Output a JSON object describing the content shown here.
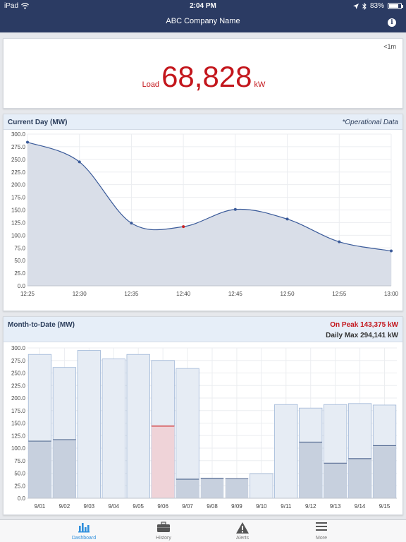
{
  "status_bar": {
    "device": "iPad",
    "time": "2:04 PM",
    "battery": "83%",
    "battery_level": 0.83
  },
  "header": {
    "title": "ABC Company Name",
    "info_icon": "info-icon"
  },
  "load": {
    "refresh": "<1m",
    "label": "Load",
    "value": "68,828",
    "unit": "kW"
  },
  "current_day": {
    "title": "Current Day (MW)",
    "note": "*Operational Data",
    "chart_data": {
      "type": "area",
      "x": [
        "12:25",
        "12:30",
        "12:35",
        "12:40",
        "12:45",
        "12:50",
        "12:55",
        "13:00"
      ],
      "values": [
        284,
        245,
        124,
        117,
        151,
        132,
        87,
        69
      ],
      "highlight_index": 3,
      "ylim": [
        0,
        300
      ],
      "yticks": [
        "0.0",
        "25.0",
        "50.0",
        "75.0",
        "100.0",
        "125.0",
        "150.0",
        "175.0",
        "200.0",
        "225.0",
        "250.0",
        "275.0",
        "300.0"
      ],
      "grid": true,
      "colors": {
        "line": "#3a5a99",
        "fill": "#d9dee8",
        "highlight": "#cc2222"
      }
    }
  },
  "month_to_date": {
    "title": "Month-to-Date (MW)",
    "on_peak": "On Peak 143,375 kW",
    "daily_max": "Daily Max 294,141 kW",
    "chart_data": {
      "type": "bar",
      "categories": [
        "9/01",
        "9/02",
        "9/03",
        "9/04",
        "9/05",
        "9/06",
        "9/07",
        "9/08",
        "9/09",
        "9/10",
        "9/11",
        "9/12",
        "9/13",
        "9/14",
        "9/15"
      ],
      "series": [
        {
          "name": "max",
          "values": [
            287,
            261,
            295,
            278,
            287,
            275,
            259,
            0,
            0,
            49,
            187,
            180,
            187,
            189,
            186
          ]
        },
        {
          "name": "on-peak",
          "values": [
            114,
            117,
            0,
            0,
            0,
            144,
            38,
            40,
            39,
            0,
            0,
            112,
            70,
            79,
            105
          ]
        }
      ],
      "highlight_index": 5,
      "ylim": [
        0,
        300
      ],
      "yticks": [
        "0.0",
        "25.0",
        "50.0",
        "75.0",
        "100.0",
        "125.0",
        "150.0",
        "175.0",
        "200.0",
        "225.0",
        "250.0",
        "275.0",
        "300.0"
      ],
      "grid": true,
      "colors": {
        "max_fill": "#e6ecf4",
        "max_stroke": "#9fb6d6",
        "peak_fill": "#c7d0de",
        "peak_stroke": "#5a6f95",
        "highlight_fill": "#efd3d8",
        "highlight_stroke": "#cc2222"
      }
    }
  },
  "tabs": [
    {
      "label": "Dashboard",
      "icon": "bar-chart-icon",
      "active": true
    },
    {
      "label": "History",
      "icon": "briefcase-icon",
      "active": false
    },
    {
      "label": "Alerts",
      "icon": "warning-icon",
      "active": false
    },
    {
      "label": "More",
      "icon": "menu-icon",
      "active": false
    }
  ]
}
